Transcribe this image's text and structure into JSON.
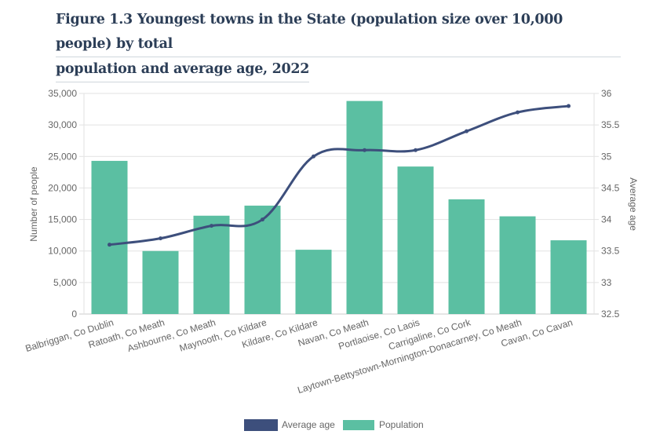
{
  "title_lines": [
    "Figure 1.3 Youngest towns in the State (population size over 10,000 people) by total",
    "population and average age, 2022"
  ],
  "colors": {
    "population": "#5bbfa2",
    "average_age": "#3d4f7c",
    "title": "#2c3e57",
    "grid": "#e2e2e2"
  },
  "chart_data": {
    "type": "bar",
    "title": "Figure 1.3 Youngest towns in the State (population size over 10,000 people) by total population and average age, 2022",
    "categories": [
      "Balbriggan, Co Dublin",
      "Ratoath, Co Meath",
      "Ashbourne, Co Meath",
      "Maynooth, Co Kildare",
      "Kildare, Co Kildare",
      "Navan, Co Meath",
      "Portlaoise, Co Laois",
      "Carrigaline, Co Cork",
      "Laytown-Bettystown-Mornington-Donacarney, Co Meath",
      "Cavan, Co Cavan"
    ],
    "series": [
      {
        "name": "Population",
        "type": "bar",
        "axis": "left",
        "values": [
          24300,
          10000,
          15600,
          17200,
          10200,
          33800,
          23400,
          18200,
          15500,
          11700
        ]
      },
      {
        "name": "Average age",
        "type": "line",
        "axis": "right",
        "values": [
          33.6,
          33.7,
          33.9,
          34.0,
          35.0,
          35.1,
          35.1,
          35.4,
          35.7,
          35.8
        ]
      }
    ],
    "ylabel": "Number of people",
    "y2label": "Average age",
    "xlabel": "",
    "ylim": [
      0,
      35000
    ],
    "y2lim": [
      32.5,
      36
    ],
    "yticks": [
      "0",
      "5,000",
      "10,000",
      "15,000",
      "20,000",
      "25,000",
      "30,000",
      "35,000"
    ],
    "y2ticks": [
      "32.5",
      "33",
      "33.5",
      "34",
      "34.5",
      "35",
      "35.5",
      "36"
    ],
    "grid": true,
    "legend": {
      "position": "bottom-center",
      "entries": [
        "Average age",
        "Population"
      ]
    }
  }
}
